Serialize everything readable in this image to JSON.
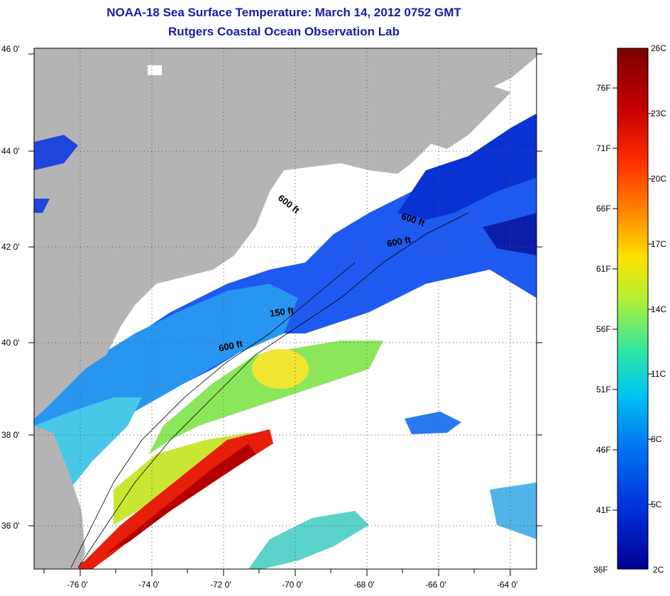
{
  "title_line1": "NOAA-18 Sea Surface Temperature:  March 14, 2012 0752 GMT",
  "title_line2": "Rutgers Coastal Ocean Observation Lab",
  "lat_labels": [
    "46 0'",
    "44 0'",
    "42 0'",
    "40 0'",
    "38 0'",
    "36 0'"
  ],
  "lon_labels": [
    "-76 0'",
    "-74 0'",
    "-72 0'",
    "-70 0'",
    "-68 0'",
    "-66 0'",
    "-64 0'"
  ],
  "isobath_labels": [
    "600 ft",
    "600 ft",
    "600 ft",
    "150 ft",
    "600 ft"
  ],
  "colorbar": {
    "fahrenheit": [
      "76F",
      "71F",
      "66F",
      "61F",
      "56F",
      "51F",
      "46F",
      "41F",
      "36F"
    ],
    "celsius": [
      "26C",
      "23C",
      "20C",
      "17C",
      "14C",
      "11C",
      "8C",
      "5C",
      "2C"
    ],
    "colors": [
      "#7a0000",
      "#c80000",
      "#ff3000",
      "#ff8c00",
      "#ffe000",
      "#b4f032",
      "#32e6a0",
      "#00c8f0",
      "#0078f0",
      "#0032dc",
      "#000090"
    ]
  },
  "colors": {
    "land": "#b4b4b4",
    "cloud": "#ffffff",
    "title": "#1a1aa8"
  }
}
